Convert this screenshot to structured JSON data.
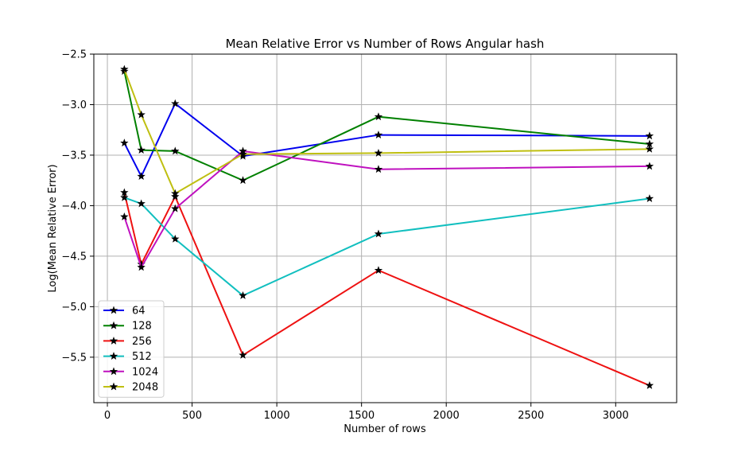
{
  "chart_data": {
    "type": "line",
    "title": "Mean Relative Error vs Number of Rows Angular hash",
    "xlabel": "Number of rows",
    "ylabel": "Log(Mean Relative Error)",
    "xlim": [
      -80,
      3360
    ],
    "ylim": [
      -5.95,
      -2.5
    ],
    "xticks": [
      0,
      500,
      1000,
      1500,
      2000,
      2500,
      3000
    ],
    "yticks": [
      -2.5,
      -3.0,
      -3.5,
      -4.0,
      -4.5,
      -5.0,
      -5.5
    ],
    "xtick_labels": [
      "0",
      "500",
      "1000",
      "1500",
      "2000",
      "2500",
      "3000"
    ],
    "ytick_labels": [
      "−2.5",
      "−3.0",
      "−3.5",
      "−4.0",
      "−4.5",
      "−5.0",
      "−5.5"
    ],
    "grid": true,
    "legend_position": "lower-left",
    "marker": "star",
    "x": [
      100,
      200,
      400,
      800,
      1600,
      3200
    ],
    "series": [
      {
        "name": "64",
        "color": "#0000ee",
        "values": [
          -3.38,
          -3.71,
          -2.99,
          -3.51,
          -3.3,
          -3.31
        ]
      },
      {
        "name": "128",
        "color": "#008000",
        "values": [
          -2.67,
          -3.45,
          -3.46,
          -3.75,
          -3.12,
          -3.39
        ]
      },
      {
        "name": "256",
        "color": "#ee1111",
        "values": [
          -3.87,
          -4.58,
          -3.91,
          -5.48,
          -4.64,
          -5.78
        ]
      },
      {
        "name": "512",
        "color": "#11bfbf",
        "values": [
          -3.92,
          -3.98,
          -4.33,
          -4.89,
          -4.28,
          -3.93
        ]
      },
      {
        "name": "1024",
        "color": "#bf11bf",
        "values": [
          -4.11,
          -4.61,
          -4.03,
          -3.46,
          -3.64,
          -3.61
        ]
      },
      {
        "name": "2048",
        "color": "#bfbf11",
        "values": [
          -2.65,
          -3.1,
          -3.88,
          -3.49,
          -3.48,
          -3.44
        ]
      }
    ]
  }
}
